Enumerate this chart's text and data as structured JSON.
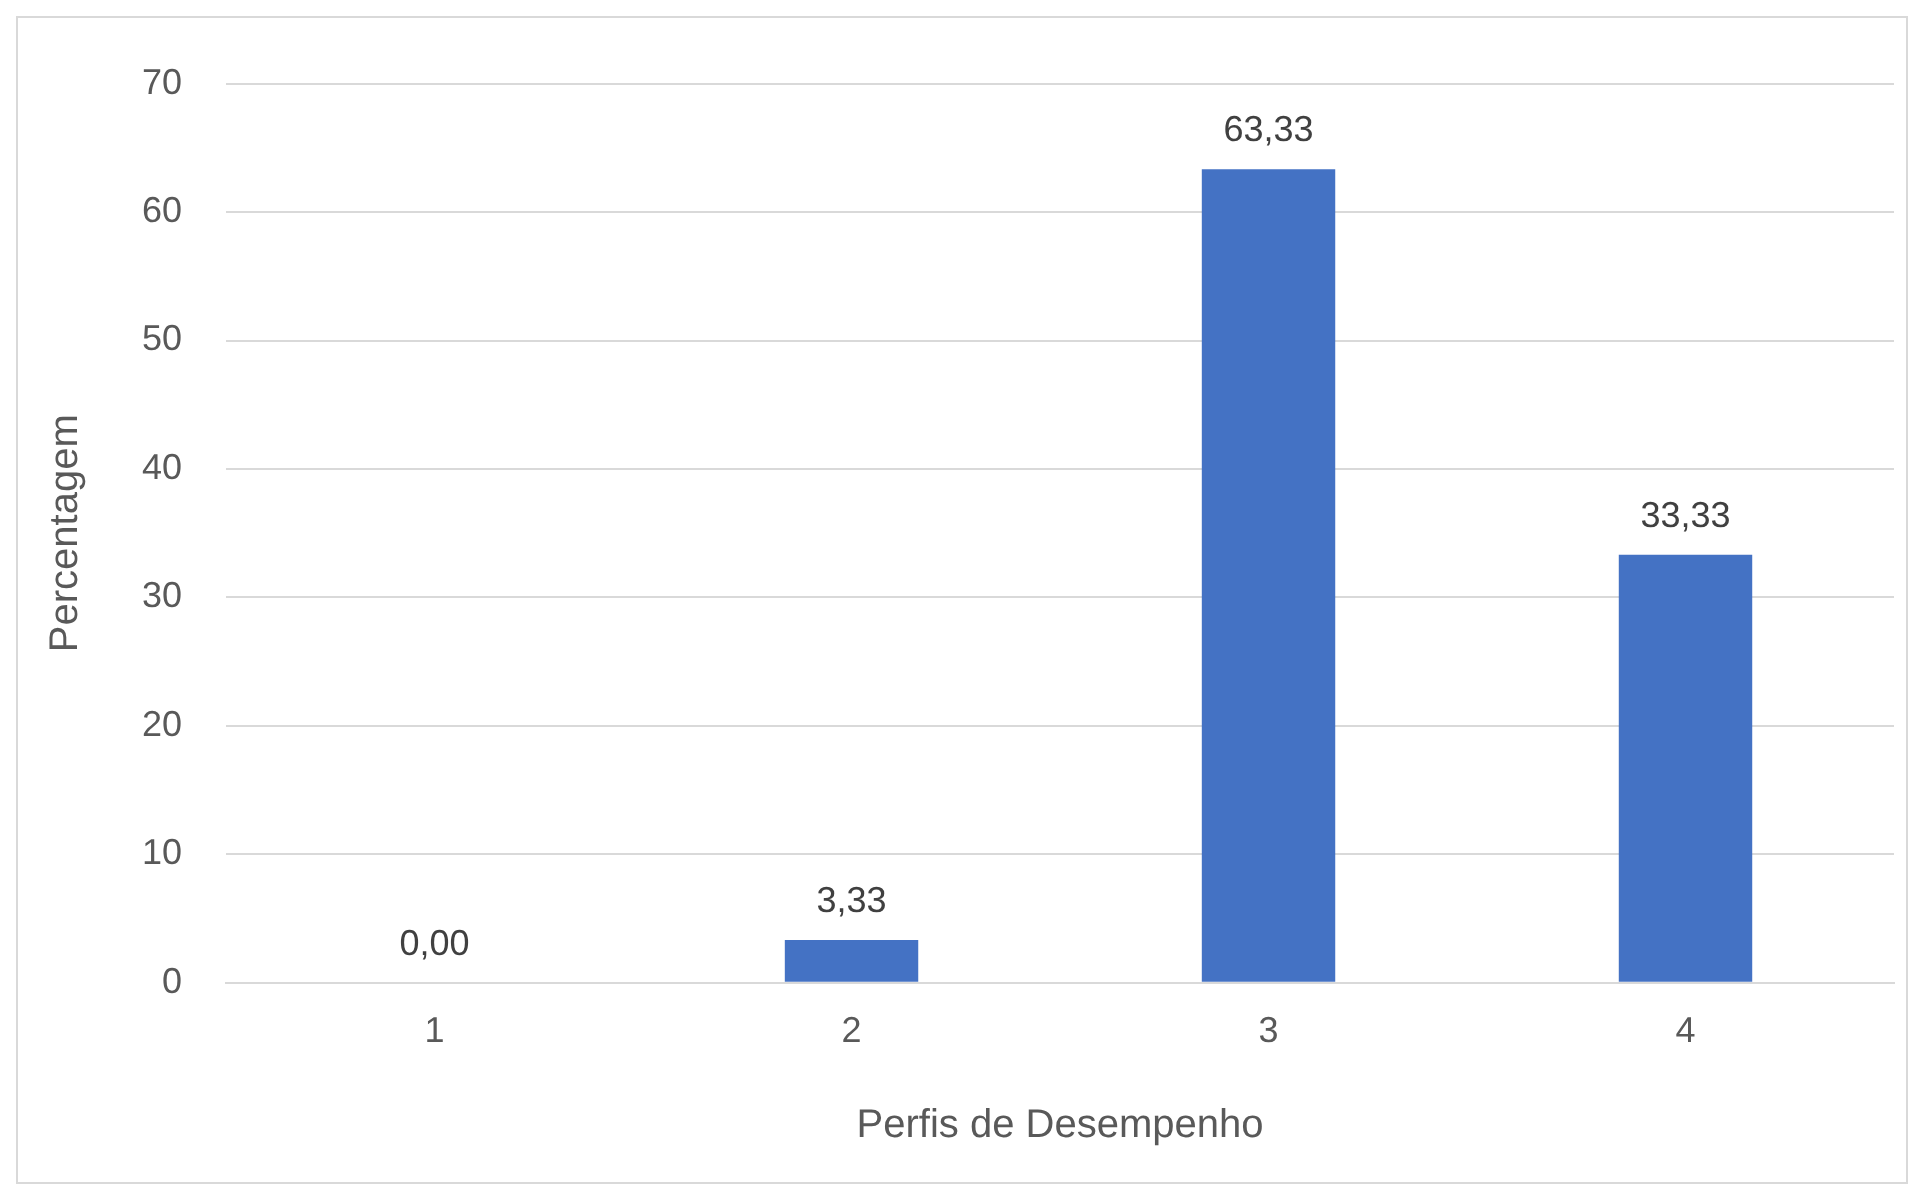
{
  "chart_data": {
    "type": "bar",
    "xlabel": "Perfis de Desempenho",
    "ylabel": "Percentagem",
    "categories": [
      "1",
      "2",
      "3",
      "4"
    ],
    "values": [
      0,
      3.33,
      63.33,
      33.33
    ],
    "value_labels": [
      "0,00",
      "3,33",
      "63,33",
      "33,33"
    ],
    "color": "#4472c4",
    "ylim": [
      0,
      70
    ],
    "yticks": [
      0,
      10,
      20,
      30,
      40,
      50,
      60,
      70
    ],
    "grid": "y",
    "legend": false
  }
}
